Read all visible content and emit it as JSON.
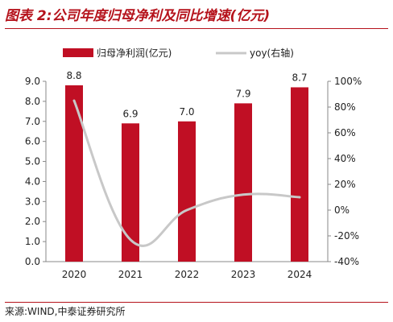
{
  "title": "图表 2:公司年度归母净利及同比增速(亿元)",
  "source": "来源:WIND,中泰证券研究所",
  "colors": {
    "bar": "#c00f24",
    "line": "#c8c8c8",
    "accent": "#b5121b"
  },
  "chart_data": {
    "type": "bar",
    "categories": [
      "2020",
      "2021",
      "2022",
      "2023",
      "2024"
    ],
    "series": [
      {
        "name": "归母净利润(亿元)",
        "type": "bar",
        "axis": "left",
        "values": [
          8.8,
          6.9,
          7.0,
          7.9,
          8.7
        ]
      },
      {
        "name": "yoy(右轴)",
        "type": "line",
        "axis": "right",
        "values": [
          85,
          -23,
          0,
          12,
          10
        ]
      }
    ],
    "data_labels": [
      "8.8",
      "6.9",
      "7.0",
      "7.9",
      "8.7"
    ],
    "y_left": {
      "min": 0,
      "max": 9,
      "ticks": [
        "0.0",
        "1.0",
        "2.0",
        "3.0",
        "4.0",
        "5.0",
        "6.0",
        "7.0",
        "8.0",
        "9.0"
      ]
    },
    "y_right": {
      "min": -40,
      "max": 100,
      "ticks": [
        "-40%",
        "-20%",
        "0%",
        "20%",
        "40%",
        "60%",
        "80%",
        "100%"
      ]
    },
    "legend_position": "top",
    "grid": false
  }
}
